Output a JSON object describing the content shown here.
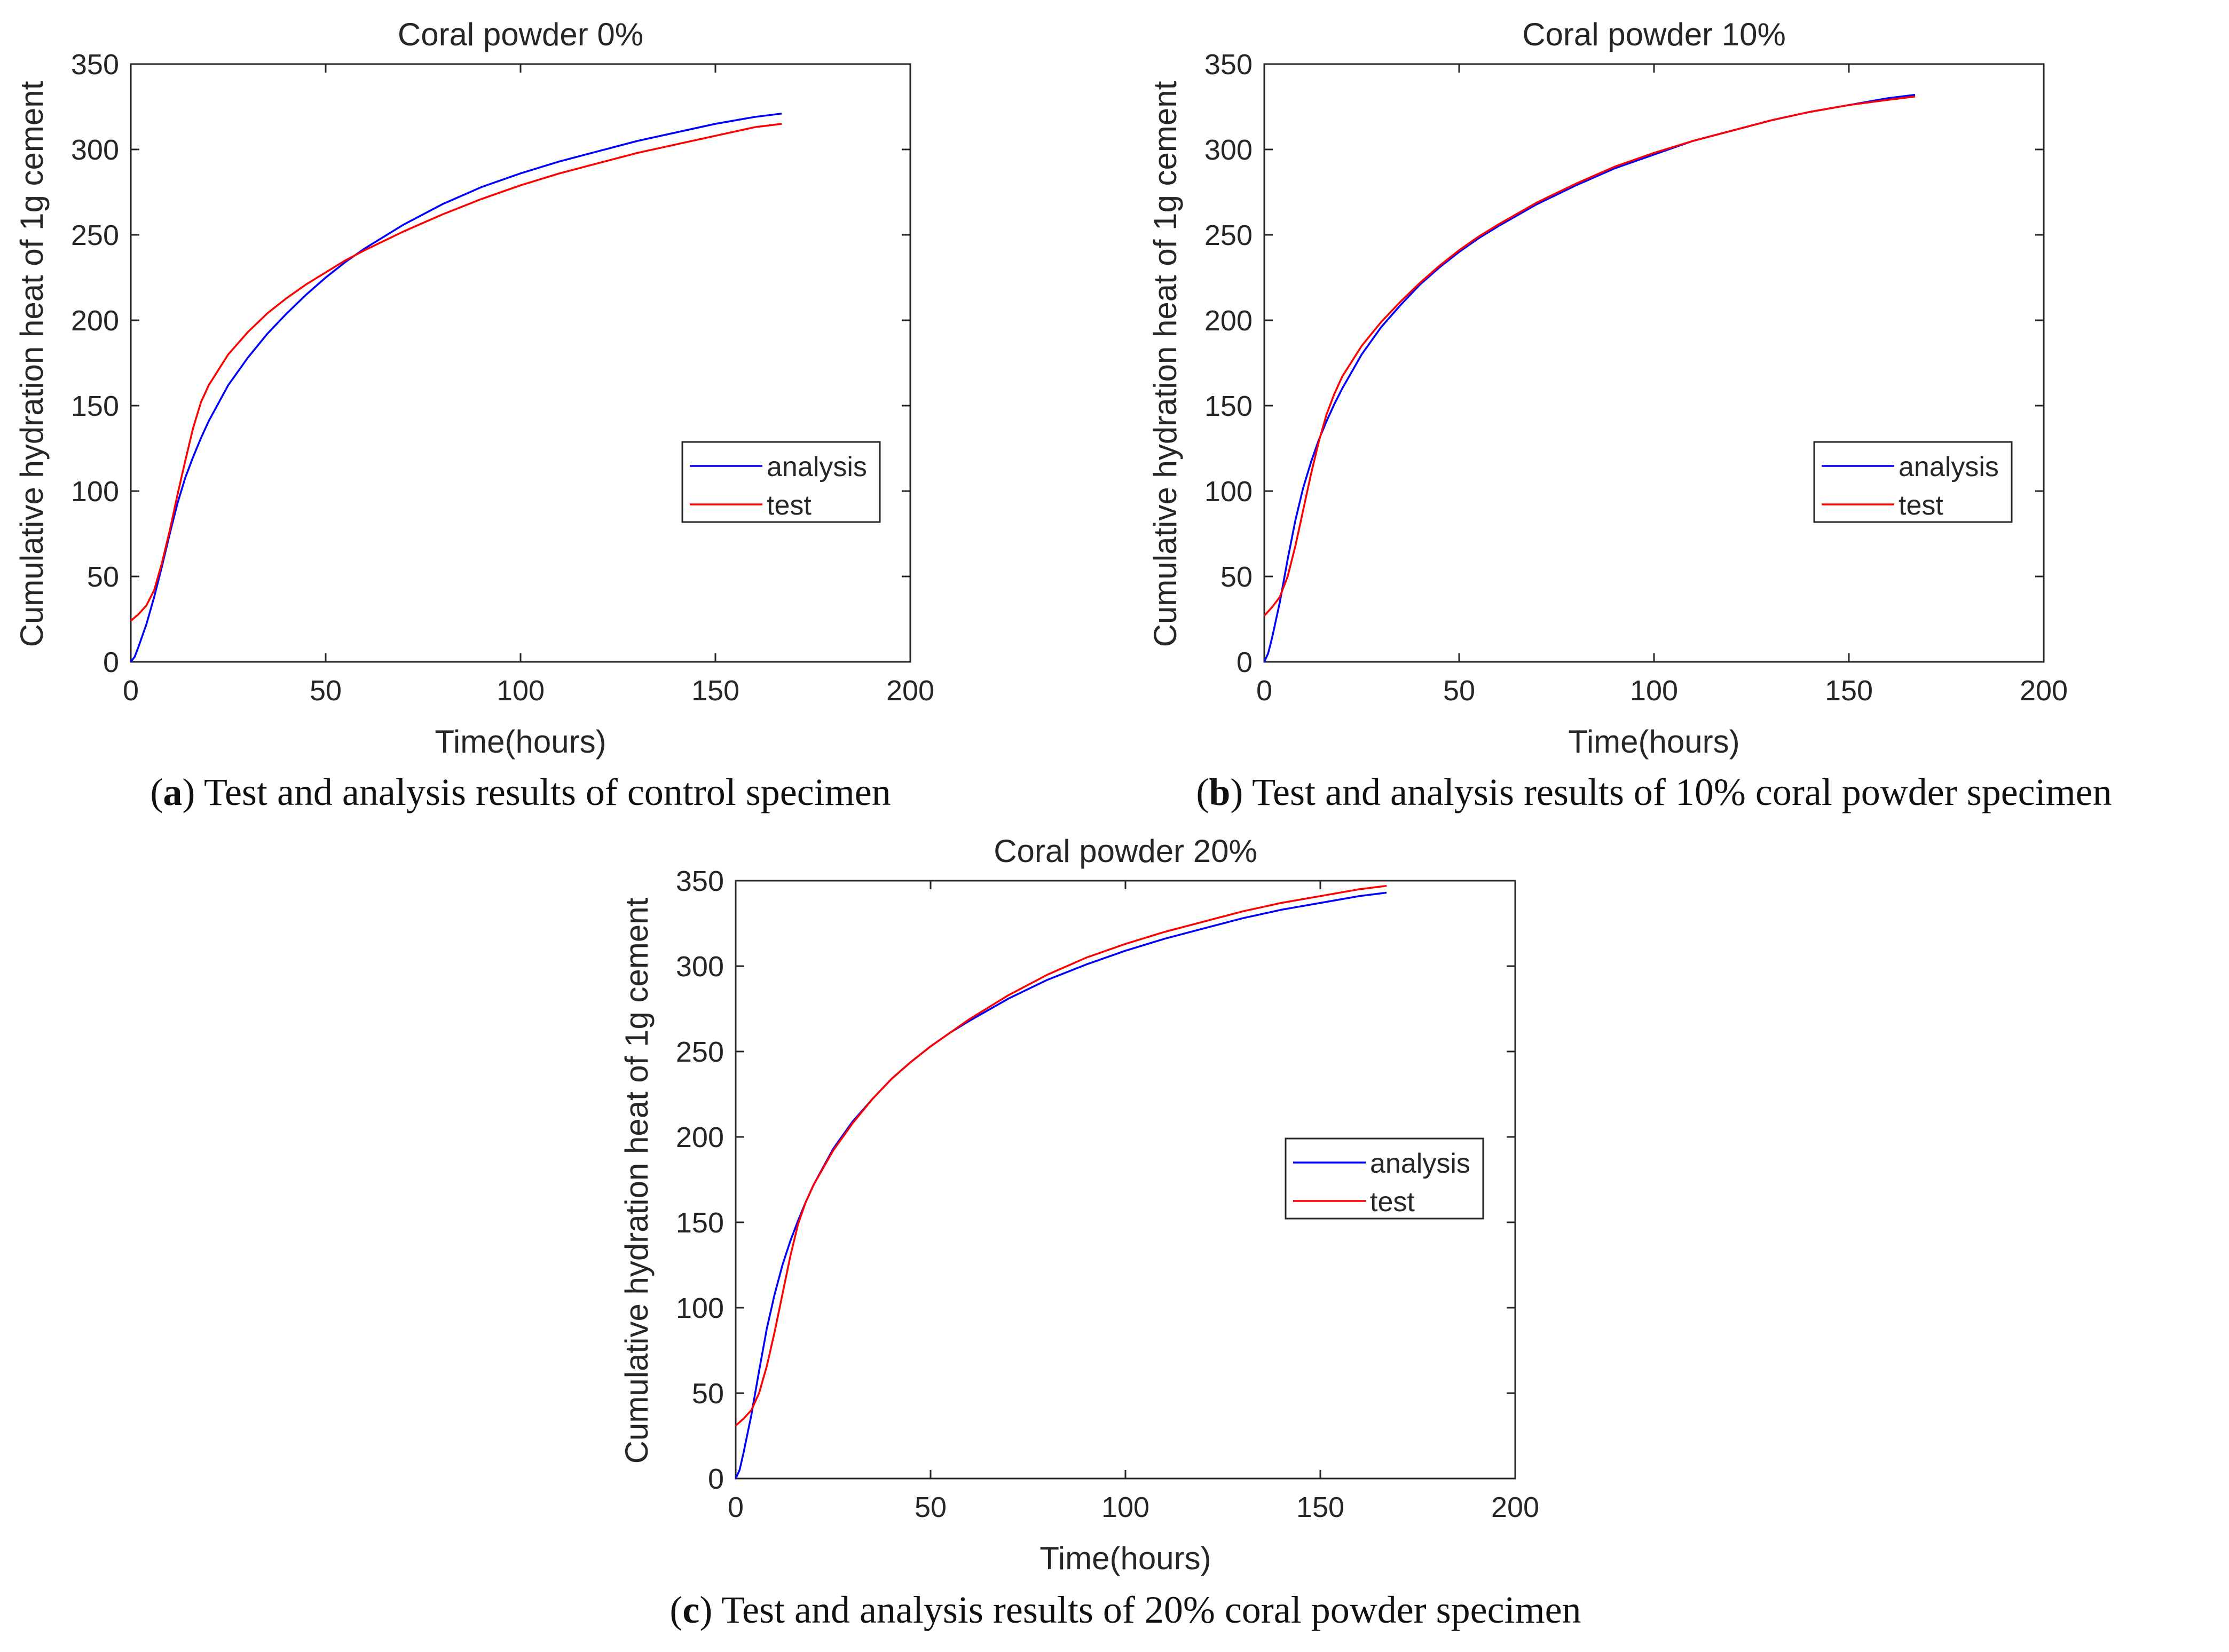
{
  "figure": {
    "panels": [
      {
        "id": "a",
        "caption_letter": "a",
        "caption_text": ") Test and analysis results of control specimen"
      },
      {
        "id": "b",
        "caption_letter": "b",
        "caption_text": ") Test and analysis results of 10% coral powder specimen"
      },
      {
        "id": "c",
        "caption_letter": "c",
        "caption_text": ") Test and analysis results of 20% coral powder specimen"
      }
    ]
  },
  "colors": {
    "analysis": "#0000ff",
    "test": "#ff0000",
    "axis": "#262626"
  },
  "chart_data": [
    {
      "type": "line",
      "title": "Coral powder 0%",
      "xlabel": "Time(hours)",
      "ylabel": "Cumulative hydration heat of 1g cement",
      "xlim": [
        0,
        200
      ],
      "ylim": [
        0,
        350
      ],
      "xticks": [
        0,
        50,
        100,
        150,
        200
      ],
      "yticks": [
        0,
        50,
        100,
        150,
        200,
        250,
        300,
        350
      ],
      "grid": false,
      "legend_position": "center-right",
      "series": [
        {
          "name": "analysis",
          "color": "#0000ff",
          "x": [
            0,
            1,
            2,
            4,
            6,
            8,
            10,
            12,
            14,
            16,
            18,
            20,
            25,
            30,
            35,
            40,
            45,
            50,
            55,
            60,
            70,
            80,
            90,
            100,
            110,
            120,
            130,
            140,
            150,
            160,
            167
          ],
          "y": [
            0,
            3,
            9,
            22,
            38,
            56,
            75,
            93,
            108,
            120,
            131,
            141,
            162,
            178,
            192,
            204,
            215,
            225,
            234,
            242,
            256,
            268,
            278,
            286,
            293,
            299,
            305,
            310,
            315,
            319,
            321
          ]
        },
        {
          "name": "test",
          "color": "#ff0000",
          "x": [
            0,
            2,
            4,
            6,
            8,
            10,
            12,
            14,
            16,
            18,
            20,
            25,
            30,
            35,
            40,
            45,
            50,
            55,
            60,
            70,
            80,
            90,
            100,
            110,
            120,
            130,
            140,
            150,
            160,
            167
          ],
          "y": [
            24,
            28,
            33,
            42,
            58,
            77,
            98,
            118,
            137,
            152,
            162,
            180,
            193,
            204,
            213,
            221,
            228,
            235,
            241,
            252,
            262,
            271,
            279,
            286,
            292,
            298,
            303,
            308,
            313,
            315
          ]
        }
      ]
    },
    {
      "type": "line",
      "title": "Coral powder 10%",
      "xlabel": "Time(hours)",
      "ylabel": "Cumulative hydration heat of 1g cement",
      "xlim": [
        0,
        200
      ],
      "ylim": [
        0,
        350
      ],
      "xticks": [
        0,
        50,
        100,
        150,
        200
      ],
      "yticks": [
        0,
        50,
        100,
        150,
        200,
        250,
        300,
        350
      ],
      "grid": false,
      "legend_position": "center-right",
      "series": [
        {
          "name": "analysis",
          "color": "#0000ff",
          "x": [
            0,
            1,
            2,
            4,
            6,
            8,
            10,
            12,
            14,
            16,
            18,
            20,
            25,
            30,
            35,
            40,
            45,
            50,
            55,
            60,
            70,
            80,
            90,
            100,
            110,
            120,
            130,
            140,
            150,
            160,
            167
          ],
          "y": [
            0,
            5,
            14,
            35,
            60,
            83,
            102,
            117,
            130,
            141,
            151,
            160,
            180,
            196,
            209,
            221,
            231,
            240,
            248,
            255,
            268,
            279,
            289,
            297,
            305,
            311,
            317,
            322,
            326,
            330,
            332
          ]
        },
        {
          "name": "test",
          "color": "#ff0000",
          "x": [
            0,
            2,
            4,
            6,
            8,
            10,
            12,
            14,
            16,
            18,
            20,
            25,
            30,
            35,
            40,
            45,
            50,
            55,
            60,
            70,
            80,
            90,
            100,
            110,
            120,
            130,
            140,
            150,
            160,
            167
          ],
          "y": [
            27,
            32,
            38,
            50,
            68,
            89,
            110,
            129,
            145,
            157,
            167,
            185,
            199,
            211,
            222,
            232,
            241,
            249,
            256,
            269,
            280,
            290,
            298,
            305,
            311,
            317,
            322,
            326,
            329,
            331
          ]
        }
      ]
    },
    {
      "type": "line",
      "title": "Coral powder 20%",
      "xlabel": "Time(hours)",
      "ylabel": "Cumulative hydration heat of 1g cement",
      "xlim": [
        0,
        200
      ],
      "ylim": [
        0,
        350
      ],
      "xticks": [
        0,
        50,
        100,
        150,
        200
      ],
      "yticks": [
        0,
        50,
        100,
        150,
        200,
        250,
        300,
        350
      ],
      "grid": false,
      "legend_position": "center-right",
      "series": [
        {
          "name": "analysis",
          "color": "#0000ff",
          "x": [
            0,
            1,
            2,
            4,
            6,
            8,
            10,
            12,
            14,
            16,
            18,
            20,
            25,
            30,
            35,
            40,
            45,
            50,
            55,
            60,
            70,
            80,
            90,
            100,
            110,
            120,
            130,
            140,
            150,
            160,
            167
          ],
          "y": [
            0,
            5,
            15,
            37,
            63,
            88,
            108,
            125,
            139,
            151,
            162,
            172,
            193,
            209,
            222,
            234,
            244,
            253,
            261,
            268,
            281,
            292,
            301,
            309,
            316,
            322,
            328,
            333,
            337,
            341,
            343
          ]
        },
        {
          "name": "test",
          "color": "#ff0000",
          "x": [
            0,
            2,
            4,
            6,
            8,
            10,
            12,
            14,
            16,
            18,
            20,
            25,
            30,
            35,
            40,
            45,
            50,
            55,
            60,
            70,
            80,
            90,
            100,
            110,
            120,
            130,
            140,
            150,
            160,
            167
          ],
          "y": [
            31,
            35,
            40,
            50,
            66,
            86,
            108,
            130,
            149,
            162,
            172,
            192,
            208,
            222,
            234,
            244,
            253,
            261,
            269,
            283,
            295,
            305,
            313,
            320,
            326,
            332,
            337,
            341,
            345,
            347
          ]
        }
      ]
    }
  ]
}
